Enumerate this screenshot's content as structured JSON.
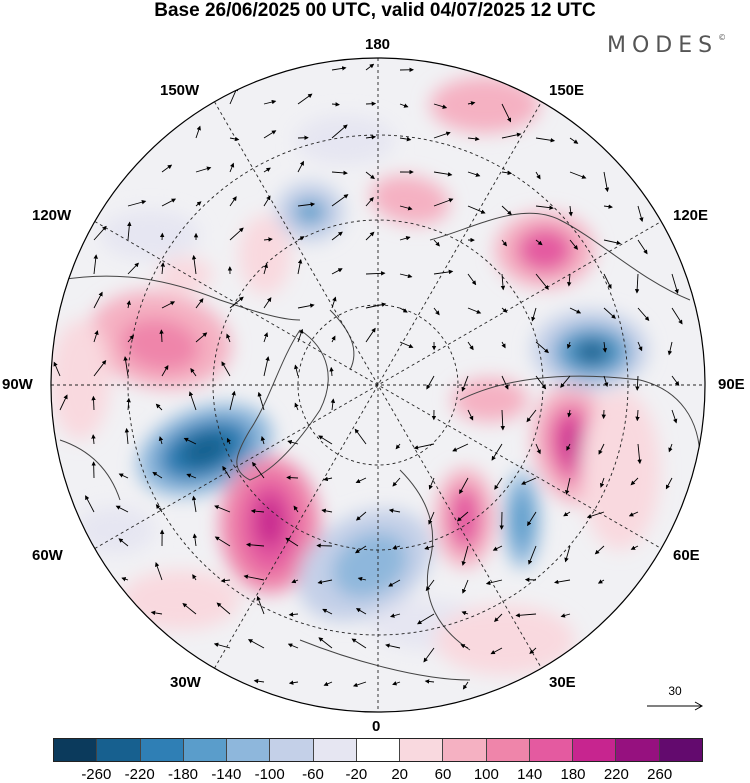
{
  "title": "Base 26/06/2025 00 UTC, valid 04/07/2025 12 UTC",
  "brand": "MODES",
  "brand_mark": "©",
  "longitude_labels": {
    "top": "180",
    "bottom": "0",
    "left": "90W",
    "right": "90E",
    "upper_left_1": "150W",
    "upper_left_2": "120W",
    "lower_left_1": "60W",
    "lower_left_2": "30W",
    "upper_right_1": "150E",
    "upper_right_2": "120E",
    "lower_right_1": "60E",
    "lower_right_2": "30E"
  },
  "vector_reference": {
    "label": "30"
  },
  "colorbar": {
    "colors": [
      "#0b3a5c",
      "#17608f",
      "#2f7fb5",
      "#5a9dcb",
      "#8eb7dc",
      "#c4d0e8",
      "#e6e6f2",
      "#ffffff",
      "#f9d9df",
      "#f5b1c2",
      "#ef85aa",
      "#e45aa0",
      "#c7258f",
      "#96117f",
      "#630a6e"
    ],
    "tick_labels": [
      "-260",
      "-220",
      "-180",
      "-140",
      "-100",
      "-60",
      "-20",
      "20",
      "60",
      "100",
      "140",
      "180",
      "220",
      "260"
    ]
  }
}
